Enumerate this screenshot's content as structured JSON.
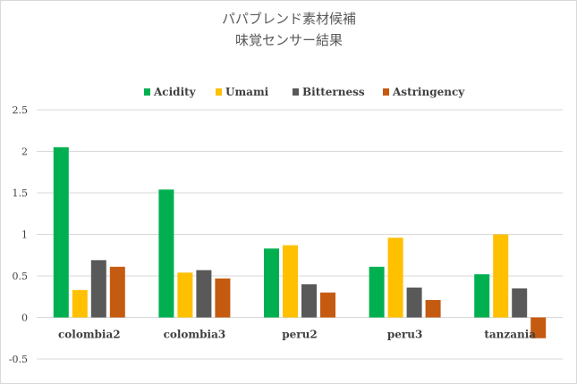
{
  "chart_data": {
    "type": "bar",
    "title": [
      "パパブレンド素材候補",
      "味覚センサー結果"
    ],
    "categories": [
      "colombia2",
      "colombia3",
      "peru2",
      "peru3",
      "tanzania"
    ],
    "series": [
      {
        "name": "Acidity",
        "color": "#00b050",
        "values": [
          2.05,
          1.54,
          0.83,
          0.61,
          0.52
        ]
      },
      {
        "name": "Umami",
        "color": "#ffc000",
        "values": [
          0.33,
          0.54,
          0.87,
          0.96,
          1.0
        ]
      },
      {
        "name": "Bitterness",
        "color": "#595959",
        "values": [
          0.69,
          0.57,
          0.4,
          0.36,
          0.35
        ]
      },
      {
        "name": "Astringency",
        "color": "#c55a11",
        "values": [
          0.61,
          0.47,
          0.3,
          0.21,
          -0.25
        ]
      }
    ],
    "ylim": [
      -0.5,
      2.5
    ],
    "yticks": [
      "2.5",
      "2",
      "1.5",
      "1",
      "0.5",
      "0",
      "-0.5"
    ],
    "grid": true,
    "legend": "top",
    "xlabel": "",
    "ylabel": ""
  }
}
